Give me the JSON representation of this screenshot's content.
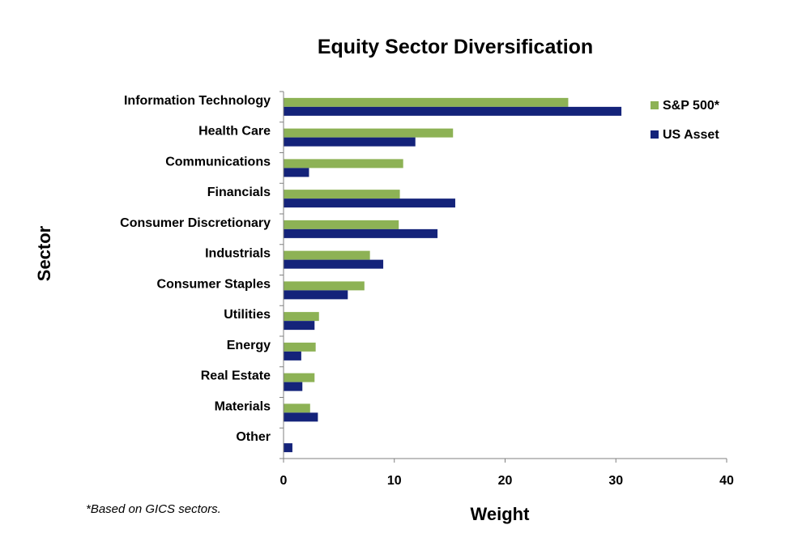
{
  "chart_data": {
    "type": "bar",
    "orientation": "horizontal",
    "title": "Equity Sector Diversification",
    "xlabel": "Weight",
    "ylabel": "Sector",
    "xlim": [
      0,
      40
    ],
    "xticks": [
      0,
      10,
      20,
      30,
      40
    ],
    "grid": false,
    "legend_position": "top-right",
    "categories": [
      "Information Technology",
      "Health Care",
      "Communications",
      "Financials",
      "Consumer Discretionary",
      "Industrials",
      "Consumer Staples",
      "Utilities",
      "Energy",
      "Real Estate",
      "Materials",
      "Other"
    ],
    "series": [
      {
        "name": "S&P 500*",
        "color": "#8DB255",
        "values": [
          25.7,
          15.3,
          10.8,
          10.5,
          10.4,
          7.8,
          7.3,
          3.2,
          2.9,
          2.8,
          2.4,
          0
        ]
      },
      {
        "name": "US Asset",
        "color": "#14237A",
        "values": [
          30.5,
          11.9,
          2.3,
          15.5,
          13.9,
          9.0,
          5.8,
          2.8,
          1.6,
          1.7,
          3.1,
          0.8
        ]
      }
    ]
  },
  "footnote": "*Based on GICS sectors."
}
